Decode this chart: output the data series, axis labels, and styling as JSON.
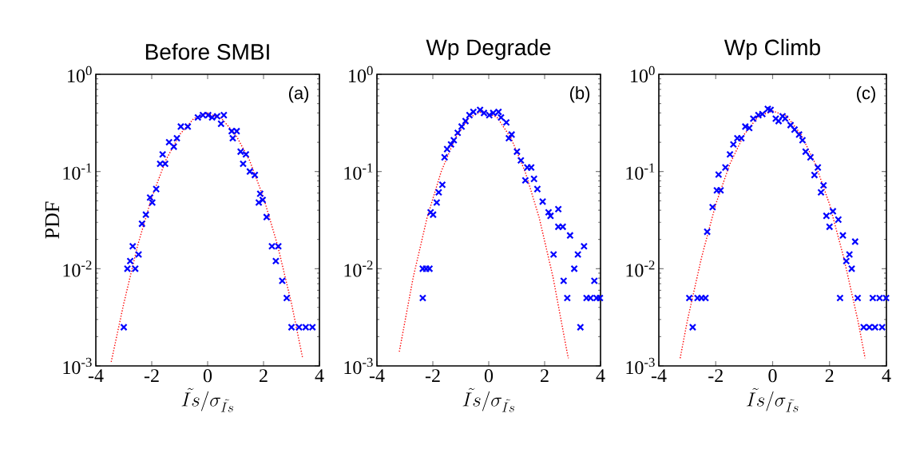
{
  "chart_data": [
    {
      "type": "scatter",
      "title": "Before SMBI",
      "ylabel": "PDF",
      "xlabel": "\\tilde{Is}/\\sigma_{\\tilde{Is}}",
      "annotations": [
        "(a)"
      ],
      "log": "y",
      "xlim": [
        -4,
        4
      ],
      "xticks": [
        -4,
        -2,
        0,
        2,
        4
      ],
      "ylim": [
        0.001,
        1
      ],
      "yticks": [
        {
          "value": 0.001,
          "label": "10$^{-3}$"
        },
        {
          "value": 0.01,
          "label": "10$^{-2}$"
        },
        {
          "value": 0.1,
          "label": "10$^{-1}$"
        },
        {
          "value": 1,
          "label": "10$^{0}$"
        }
      ],
      "series": [
        {
          "color": "#0000ff",
          "marker": "cross",
          "x": [
            -3.0,
            -2.87,
            -2.59,
            -2.77,
            -2.68,
            -2.47,
            -2.35,
            -2.21,
            -2.06,
            -1.98,
            -1.84,
            -1.7,
            -1.52,
            -1.61,
            -1.38,
            -1.21,
            -1.1,
            -0.96,
            -0.71,
            -0.35,
            -0.17,
            0.02,
            0.16,
            0.34,
            0.58,
            0.48,
            0.86,
            1.04,
            0.9,
            1.18,
            1.37,
            1.27,
            1.51,
            1.69,
            1.88,
            1.97,
            1.83,
            2.11,
            2.3,
            2.53,
            2.44,
            2.67,
            2.83,
            3.0,
            3.27,
            3.51,
            3.75
          ],
          "values": [
            0.0025,
            0.01,
            0.01,
            0.012,
            0.017,
            0.014,
            0.029,
            0.036,
            0.054,
            0.048,
            0.066,
            0.12,
            0.12,
            0.15,
            0.2,
            0.18,
            0.22,
            0.29,
            0.29,
            0.36,
            0.38,
            0.38,
            0.36,
            0.37,
            0.38,
            0.31,
            0.26,
            0.26,
            0.22,
            0.16,
            0.15,
            0.12,
            0.1,
            0.092,
            0.059,
            0.051,
            0.048,
            0.034,
            0.017,
            0.017,
            0.012,
            0.0075,
            0.005,
            0.0025,
            0.0025,
            0.0025,
            0.0025
          ]
        },
        {
          "type": "line",
          "color": "#ff0000",
          "marker": "none",
          "line_style": "dotted",
          "x": [
            -3.45,
            -3.0,
            -2.5,
            -2.0,
            -1.5,
            -1.0,
            -0.5,
            0.0,
            0.5,
            1.0,
            1.5,
            2.0,
            2.5,
            3.0,
            3.4
          ],
          "values": [
            0.0011,
            0.0044,
            0.0175,
            0.054,
            0.13,
            0.24,
            0.35,
            0.4,
            0.35,
            0.24,
            0.13,
            0.054,
            0.0175,
            0.0044,
            0.0012
          ]
        }
      ]
    },
    {
      "type": "scatter",
      "title": "Wp Degrade",
      "xlabel": "\\tilde{Is}/\\sigma_{\\tilde{Is}}",
      "annotations": [
        "(b)"
      ],
      "log": "y",
      "xlim": [
        -4,
        4
      ],
      "xticks": [
        -4,
        -2,
        0,
        2,
        4
      ],
      "ylim": [
        0.001,
        1
      ],
      "yticks": [
        {
          "value": 0.001,
          "label": "10$^{-3}$"
        },
        {
          "value": 0.01,
          "label": "10$^{-2}$"
        },
        {
          "value": 0.1,
          "label": "10$^{-1}$"
        },
        {
          "value": 1,
          "label": "10$^{0}$"
        }
      ],
      "series": [
        {
          "color": "#0000ff",
          "marker": "cross",
          "x": [
            -2.36,
            -2.24,
            -2.12,
            -2.36,
            -2.08,
            -1.99,
            -1.86,
            -1.79,
            -1.66,
            -1.58,
            -1.49,
            -1.35,
            -1.25,
            -1.11,
            -0.97,
            -0.83,
            -0.69,
            -0.55,
            -0.31,
            -0.17,
            0.02,
            0.16,
            0.35,
            0.44,
            0.63,
            0.82,
            0.72,
            1.01,
            1.15,
            1.38,
            1.52,
            1.31,
            1.62,
            1.74,
            1.93,
            2.14,
            2.21,
            2.49,
            2.49,
            2.65,
            2.91,
            2.32,
            2.68,
            2.81,
            3.06,
            3.19,
            3.41,
            3.28,
            3.78,
            3.5,
            3.64,
            3.86,
            3.98
          ],
          "values": [
            0.01,
            0.01,
            0.01,
            0.005,
            0.038,
            0.036,
            0.048,
            0.061,
            0.073,
            0.14,
            0.17,
            0.19,
            0.21,
            0.25,
            0.29,
            0.33,
            0.38,
            0.41,
            0.43,
            0.4,
            0.38,
            0.4,
            0.41,
            0.36,
            0.32,
            0.24,
            0.22,
            0.16,
            0.13,
            0.11,
            0.11,
            0.081,
            0.084,
            0.066,
            0.049,
            0.038,
            0.035,
            0.041,
            0.027,
            0.027,
            0.022,
            0.014,
            0.0075,
            0.005,
            0.01,
            0.014,
            0.017,
            0.0025,
            0.0075,
            0.005,
            0.005,
            0.005,
            0.005
          ]
        },
        {
          "type": "line",
          "color": "#ff0000",
          "marker": "none",
          "line_style": "dotted",
          "x": [
            -3.2,
            -2.7,
            -2.2,
            -1.7,
            -1.2,
            -0.7,
            -0.2,
            0.3,
            0.8,
            1.3,
            1.8,
            2.3,
            2.8,
            2.85
          ],
          "values": [
            0.0014,
            0.0082,
            0.034,
            0.1,
            0.22,
            0.36,
            0.42,
            0.36,
            0.22,
            0.1,
            0.034,
            0.0082,
            0.0014,
            0.0012
          ]
        }
      ]
    },
    {
      "type": "scatter",
      "title": "Wp Climb",
      "xlabel": "\\tilde{Is}/\\sigma_{\\tilde{Is}}",
      "annotations": [
        "(c)"
      ],
      "log": "y",
      "xlim": [
        -4,
        4
      ],
      "xticks": [
        -4,
        -2,
        0,
        2,
        4
      ],
      "ylim": [
        0.001,
        1
      ],
      "yticks": [
        {
          "value": 0.001,
          "label": "10$^{-3}$"
        },
        {
          "value": 0.01,
          "label": "10$^{-2}$"
        },
        {
          "value": 0.1,
          "label": "10$^{-1}$"
        },
        {
          "value": 1,
          "label": "10$^{0}$"
        }
      ],
      "series": [
        {
          "color": "#0000ff",
          "marker": "cross",
          "x": [
            -2.93,
            -2.64,
            -2.5,
            -2.36,
            -2.81,
            -2.3,
            -2.11,
            -1.96,
            -1.83,
            -1.9,
            -1.66,
            -1.5,
            -1.38,
            -1.24,
            -1.1,
            -0.96,
            -0.82,
            -0.68,
            -0.5,
            -0.36,
            -0.17,
            -0.07,
            0.11,
            0.21,
            0.35,
            0.44,
            0.63,
            0.77,
            0.93,
            1.05,
            1.16,
            1.33,
            1.59,
            1.47,
            1.79,
            1.7,
            2.12,
            1.89,
            2.31,
            2.0,
            2.47,
            2.9,
            2.7,
            2.59,
            2.78,
            2.37,
            2.99,
            3.52,
            3.76,
            3.99,
            3.2,
            3.4,
            3.6,
            3.85
          ],
          "values": [
            0.005,
            0.005,
            0.005,
            0.005,
            0.0025,
            0.024,
            0.043,
            0.064,
            0.064,
            0.093,
            0.11,
            0.15,
            0.19,
            0.22,
            0.22,
            0.29,
            0.28,
            0.35,
            0.38,
            0.39,
            0.44,
            0.43,
            0.35,
            0.33,
            0.37,
            0.35,
            0.3,
            0.27,
            0.24,
            0.21,
            0.16,
            0.14,
            0.11,
            0.092,
            0.072,
            0.061,
            0.039,
            0.035,
            0.032,
            0.027,
            0.022,
            0.019,
            0.014,
            0.012,
            0.01,
            0.005,
            0.005,
            0.005,
            0.005,
            0.005,
            0.0025,
            0.0025,
            0.0025,
            0.0025
          ]
        },
        {
          "type": "line",
          "color": "#ff0000",
          "marker": "none",
          "line_style": "dotted",
          "x": [
            -3.25,
            -3.0,
            -2.5,
            -2.0,
            -1.5,
            -1.0,
            -0.5,
            0.0,
            0.5,
            1.0,
            1.5,
            2.0,
            2.5,
            3.0,
            3.25
          ],
          "values": [
            0.0012,
            0.0029,
            0.013,
            0.046,
            0.12,
            0.24,
            0.37,
            0.42,
            0.37,
            0.24,
            0.12,
            0.046,
            0.013,
            0.0029,
            0.0012
          ]
        }
      ]
    }
  ]
}
